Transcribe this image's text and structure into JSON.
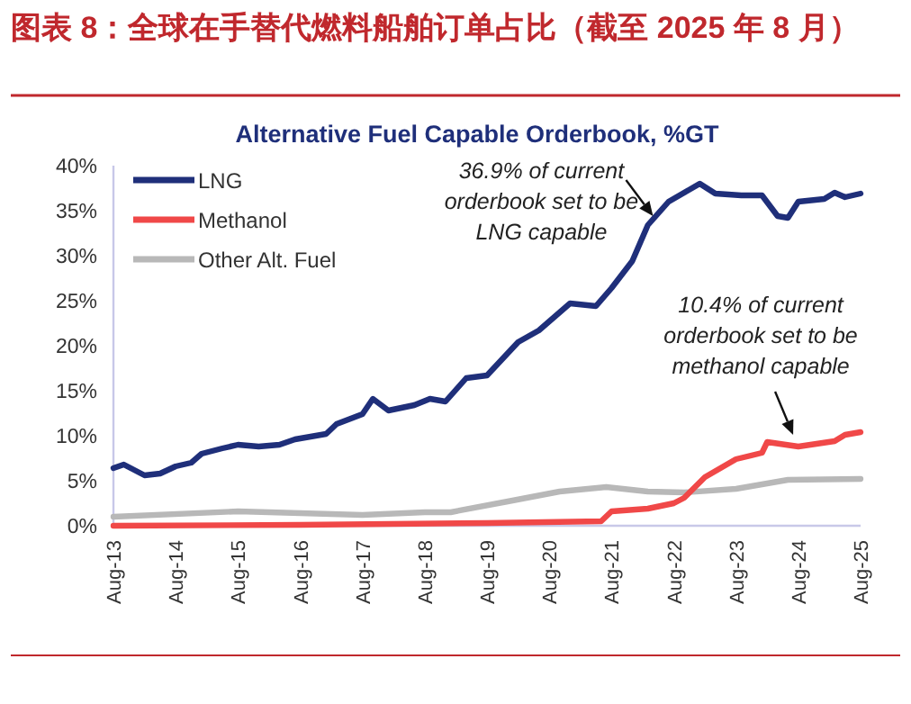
{
  "chart_data": {
    "type": "line",
    "title": "图表 8：全球在手替代燃料船舶订单占比（截至 2025 年 8 月）",
    "subtitle": "Alternative Fuel Capable Orderbook, %GT",
    "series": [
      {
        "name": "LNG",
        "color": "#1f2f7a",
        "x": [
          "2013-08",
          "2013-10",
          "2014-02",
          "2014-05",
          "2014-08",
          "2014-11",
          "2015-01",
          "2015-05",
          "2015-08",
          "2015-12",
          "2016-04",
          "2016-07",
          "2017-01",
          "2017-03",
          "2017-08",
          "2017-10",
          "2018-01",
          "2018-06",
          "2018-09",
          "2018-12",
          "2019-02",
          "2019-04",
          "2019-08",
          "2020-02",
          "2020-06",
          "2020-12",
          "2021-05",
          "2021-08",
          "2021-12",
          "2022-03",
          "2022-07",
          "2022-10",
          "2023-01",
          "2023-04",
          "2023-09",
          "2024-01",
          "2024-04",
          "2024-06",
          "2024-08",
          "2025-01",
          "2025-03",
          "2025-05",
          "2025-08"
        ],
        "values": [
          6.4,
          6.8,
          5.6,
          5.8,
          6.6,
          7.0,
          8.0,
          8.6,
          9.0,
          8.8,
          9.0,
          9.6,
          10.2,
          11.3,
          12.4,
          14.1,
          12.8,
          13.4,
          14.1,
          13.8,
          15.1,
          16.4,
          16.7,
          20.4,
          21.7,
          24.7,
          24.4,
          26.4,
          29.4,
          33.4,
          36.0,
          37.0,
          38.0,
          36.9,
          36.7,
          36.7,
          34.4,
          34.2,
          36.0,
          36.3,
          37.0,
          36.5,
          36.9
        ]
      },
      {
        "name": "Methanol",
        "color": "#f04848",
        "x": [
          "2013-08",
          "2016-08",
          "2019-08",
          "2021-06",
          "2021-08",
          "2022-03",
          "2022-08",
          "2022-10",
          "2023-02",
          "2023-08",
          "2024-01",
          "2024-02",
          "2024-08",
          "2025-03",
          "2025-05",
          "2025-08"
        ],
        "values": [
          0,
          0.1,
          0.3,
          0.5,
          1.6,
          1.9,
          2.5,
          3.1,
          5.4,
          7.4,
          8.1,
          9.3,
          8.8,
          9.4,
          10.1,
          10.4
        ]
      },
      {
        "name": "Other Alt. Fuel",
        "color": "#b8b8b8",
        "x": [
          "2013-08",
          "2015-08",
          "2017-08",
          "2018-08",
          "2019-01",
          "2019-12",
          "2020-10",
          "2021-07",
          "2022-03",
          "2022-10",
          "2023-08",
          "2024-06",
          "2025-08"
        ],
        "values": [
          1.0,
          1.6,
          1.2,
          1.5,
          1.5,
          2.7,
          3.8,
          4.3,
          3.8,
          3.7,
          4.1,
          5.1,
          5.2
        ]
      }
    ],
    "xlim": [
      "2013-08",
      "2025-08"
    ],
    "xticks": [
      {
        "value": "2013-08",
        "label": "Aug-13"
      },
      {
        "value": "2014-08",
        "label": "Aug-14"
      },
      {
        "value": "2015-08",
        "label": "Aug-15"
      },
      {
        "value": "2016-08",
        "label": "Aug-16"
      },
      {
        "value": "2017-08",
        "label": "Aug-17"
      },
      {
        "value": "2018-08",
        "label": "Aug-18"
      },
      {
        "value": "2019-08",
        "label": "Aug-19"
      },
      {
        "value": "2020-08",
        "label": "Aug-20"
      },
      {
        "value": "2021-08",
        "label": "Aug-21"
      },
      {
        "value": "2022-08",
        "label": "Aug-22"
      },
      {
        "value": "2023-08",
        "label": "Aug-23"
      },
      {
        "value": "2024-08",
        "label": "Aug-24"
      },
      {
        "value": "2025-08",
        "label": "Aug-25"
      }
    ],
    "ylim": [
      0,
      40
    ],
    "yticks": [
      {
        "value": 0,
        "label": "0%"
      },
      {
        "value": 5,
        "label": "5%"
      },
      {
        "value": 10,
        "label": "10%"
      },
      {
        "value": 15,
        "label": "15%"
      },
      {
        "value": 20,
        "label": "20%"
      },
      {
        "value": 25,
        "label": "25%"
      },
      {
        "value": 30,
        "label": "30%"
      },
      {
        "value": 35,
        "label": "35%"
      },
      {
        "value": 40,
        "label": "40%"
      }
    ],
    "grid": false,
    "legend": "top left",
    "annotations": [
      {
        "text": "36.9% of current\norderbook set to be\nLNG capable",
        "x": "2022-04",
        "y": 34.4
      },
      {
        "text": "10.4% of current\norderbook set to be\nmethanol capable",
        "x": "2024-07",
        "y": 10.1
      }
    ]
  }
}
